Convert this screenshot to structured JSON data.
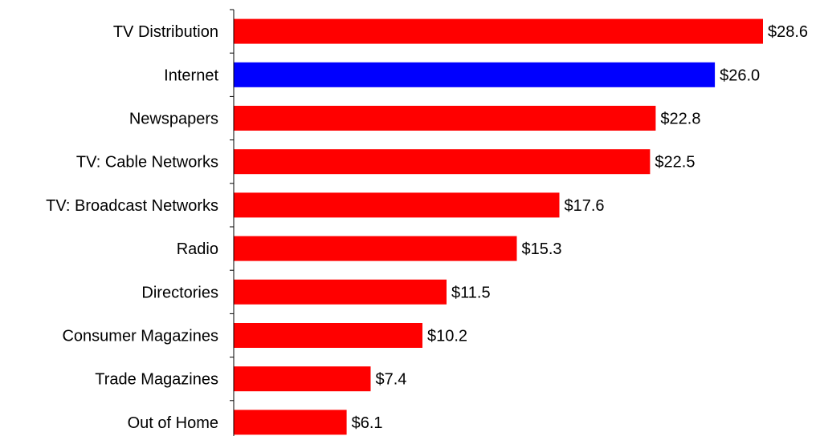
{
  "chart_data": {
    "type": "bar",
    "orientation": "horizontal",
    "title": "",
    "xlabel": "",
    "ylabel": "",
    "categories": [
      "TV Distribution",
      "Internet",
      "Newspapers",
      "TV: Cable Networks",
      "TV: Broadcast Networks",
      "Radio",
      "Directories",
      "Consumer Magazines",
      "Trade Magazines",
      "Out of Home"
    ],
    "values": [
      28.6,
      26.0,
      22.8,
      22.5,
      17.6,
      15.3,
      11.5,
      10.2,
      7.4,
      6.1
    ],
    "value_labels": [
      "$28.6",
      "$26.0",
      "$22.8",
      "$22.5",
      "$17.6",
      "$15.3",
      "$11.5",
      "$10.2",
      "$7.4",
      "$6.1"
    ],
    "bar_colors": [
      "#FF0000",
      "#0000FF",
      "#FF0000",
      "#FF0000",
      "#FF0000",
      "#FF0000",
      "#FF0000",
      "#FF0000",
      "#FF0000",
      "#FF0000"
    ],
    "xlim": [
      0,
      28.6
    ],
    "grid": false,
    "legend": "none"
  }
}
